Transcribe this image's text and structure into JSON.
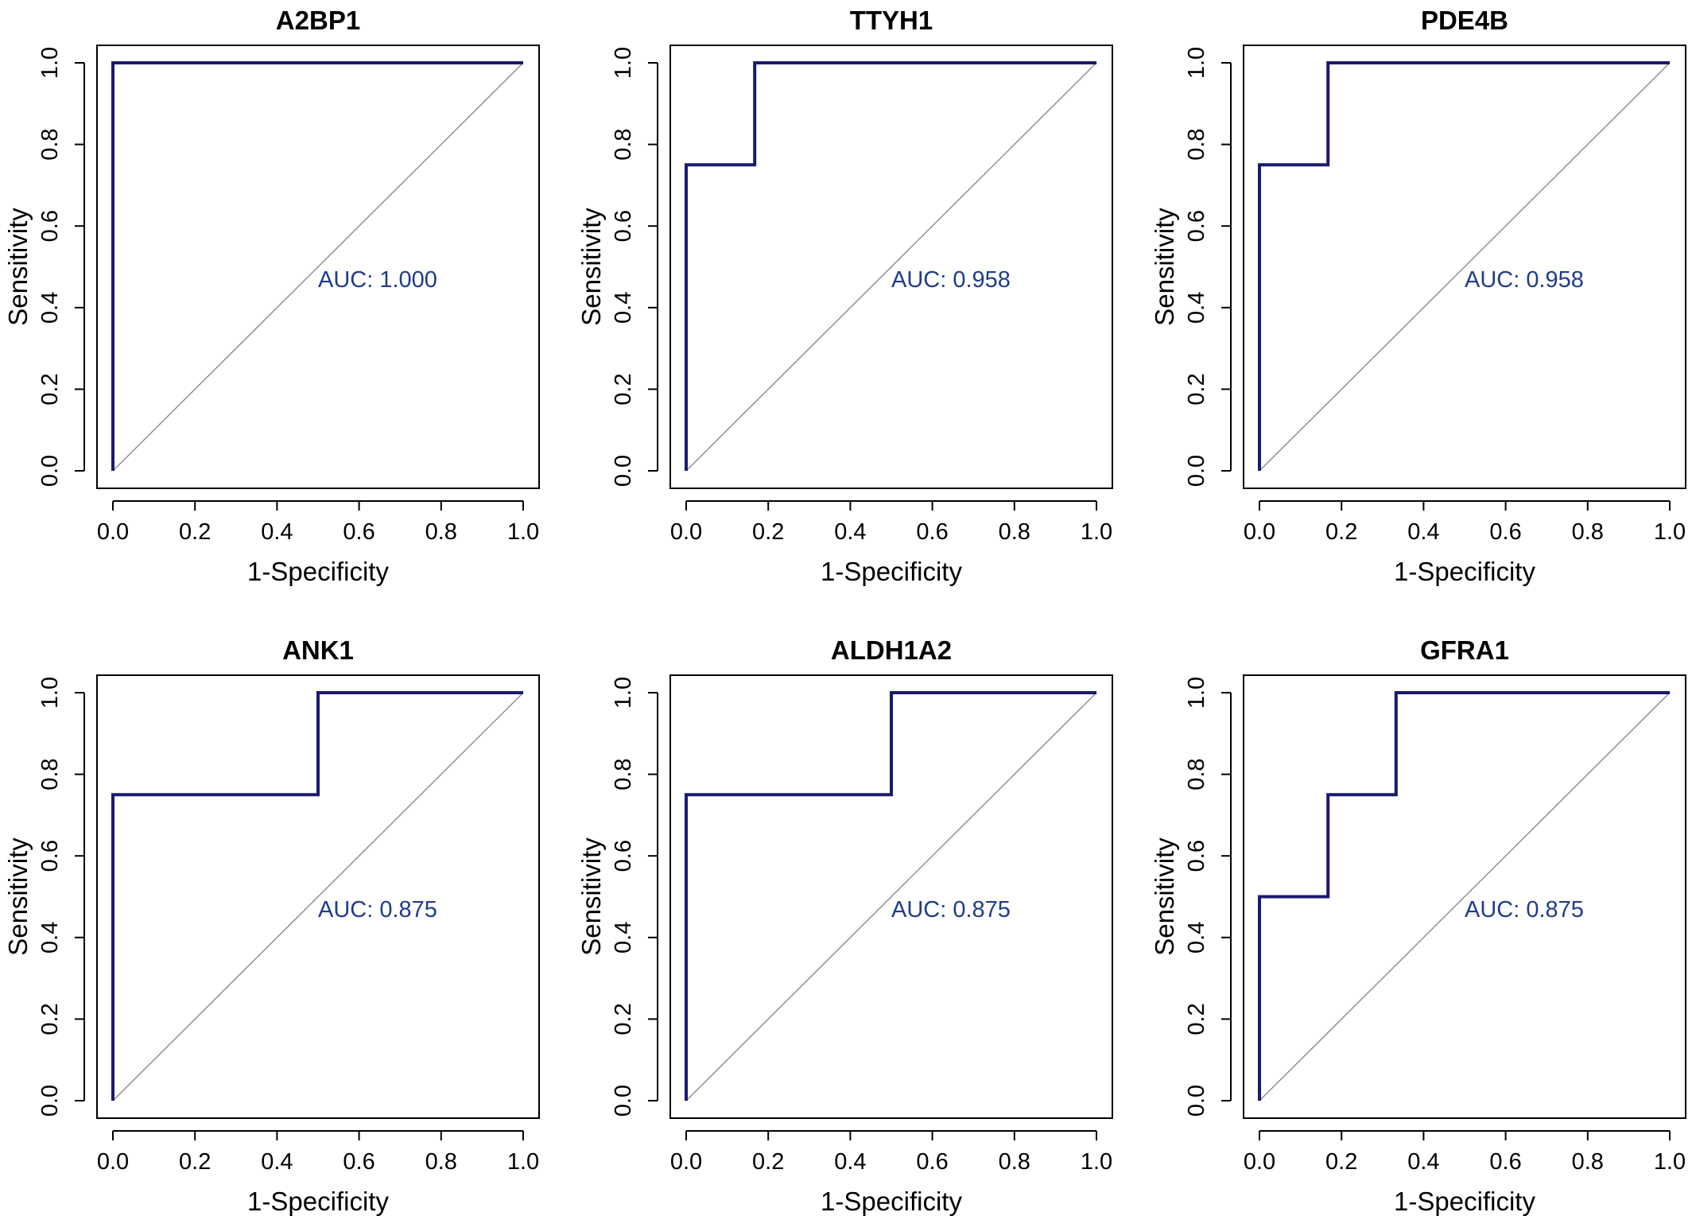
{
  "colors": {
    "roc_line": "#1a1a6e",
    "auc_text": "#1f3c8c",
    "diagonal": "#909090",
    "frame": "#000000"
  },
  "chart_data": [
    {
      "type": "line",
      "title": "A2BP1",
      "xlabel": "1-Specificity",
      "ylabel": "Sensitivity",
      "xlim": [
        0.0,
        1.0
      ],
      "ylim": [
        0.0,
        1.0
      ],
      "x_ticks": [
        "0.0",
        "0.2",
        "0.4",
        "0.6",
        "0.8",
        "1.0"
      ],
      "y_ticks": [
        "0.0",
        "0.2",
        "0.4",
        "0.6",
        "0.8",
        "1.0"
      ],
      "grid": false,
      "diagonal_reference": true,
      "auc_label": "AUC: 1.000",
      "auc": 1.0,
      "series": [
        {
          "x": [
            0,
            0,
            1
          ],
          "y": [
            0,
            1,
            1
          ]
        }
      ]
    },
    {
      "type": "line",
      "title": "TTYH1",
      "xlabel": "1-Specificity",
      "ylabel": "Sensitivity",
      "xlim": [
        0.0,
        1.0
      ],
      "ylim": [
        0.0,
        1.0
      ],
      "x_ticks": [
        "0.0",
        "0.2",
        "0.4",
        "0.6",
        "0.8",
        "1.0"
      ],
      "y_ticks": [
        "0.0",
        "0.2",
        "0.4",
        "0.6",
        "0.8",
        "1.0"
      ],
      "grid": false,
      "diagonal_reference": true,
      "auc_label": "AUC: 0.958",
      "auc": 0.958,
      "series": [
        {
          "x": [
            0,
            0,
            0.167,
            0.167,
            1
          ],
          "y": [
            0,
            0.75,
            0.75,
            1,
            1
          ]
        }
      ]
    },
    {
      "type": "line",
      "title": "PDE4B",
      "xlabel": "1-Specificity",
      "ylabel": "Sensitivity",
      "xlim": [
        0.0,
        1.0
      ],
      "ylim": [
        0.0,
        1.0
      ],
      "x_ticks": [
        "0.0",
        "0.2",
        "0.4",
        "0.6",
        "0.8",
        "1.0"
      ],
      "y_ticks": [
        "0.0",
        "0.2",
        "0.4",
        "0.6",
        "0.8",
        "1.0"
      ],
      "grid": false,
      "diagonal_reference": true,
      "auc_label": "AUC: 0.958",
      "auc": 0.958,
      "series": [
        {
          "x": [
            0,
            0,
            0.167,
            0.167,
            1
          ],
          "y": [
            0,
            0.75,
            0.75,
            1,
            1
          ]
        }
      ]
    },
    {
      "type": "line",
      "title": "ANK1",
      "xlabel": "1-Specificity",
      "ylabel": "Sensitivity",
      "xlim": [
        0.0,
        1.0
      ],
      "ylim": [
        0.0,
        1.0
      ],
      "x_ticks": [
        "0.0",
        "0.2",
        "0.4",
        "0.6",
        "0.8",
        "1.0"
      ],
      "y_ticks": [
        "0.0",
        "0.2",
        "0.4",
        "0.6",
        "0.8",
        "1.0"
      ],
      "grid": false,
      "diagonal_reference": true,
      "auc_label": "AUC: 0.875",
      "auc": 0.875,
      "series": [
        {
          "x": [
            0,
            0,
            0.5,
            0.5,
            1
          ],
          "y": [
            0,
            0.75,
            0.75,
            1,
            1
          ]
        }
      ]
    },
    {
      "type": "line",
      "title": "ALDH1A2",
      "xlabel": "1-Specificity",
      "ylabel": "Sensitivity",
      "xlim": [
        0.0,
        1.0
      ],
      "ylim": [
        0.0,
        1.0
      ],
      "x_ticks": [
        "0.0",
        "0.2",
        "0.4",
        "0.6",
        "0.8",
        "1.0"
      ],
      "y_ticks": [
        "0.0",
        "0.2",
        "0.4",
        "0.6",
        "0.8",
        "1.0"
      ],
      "grid": false,
      "diagonal_reference": true,
      "auc_label": "AUC: 0.875",
      "auc": 0.875,
      "series": [
        {
          "x": [
            0,
            0,
            0.5,
            0.5,
            1
          ],
          "y": [
            0,
            0.75,
            0.75,
            1,
            1
          ]
        }
      ]
    },
    {
      "type": "line",
      "title": "GFRA1",
      "xlabel": "1-Specificity",
      "ylabel": "Sensitivity",
      "xlim": [
        0.0,
        1.0
      ],
      "ylim": [
        0.0,
        1.0
      ],
      "x_ticks": [
        "0.0",
        "0.2",
        "0.4",
        "0.6",
        "0.8",
        "1.0"
      ],
      "y_ticks": [
        "0.0",
        "0.2",
        "0.4",
        "0.6",
        "0.8",
        "1.0"
      ],
      "grid": false,
      "diagonal_reference": true,
      "auc_label": "AUC: 0.875",
      "auc": 0.875,
      "series": [
        {
          "x": [
            0,
            0,
            0.167,
            0.167,
            0.333,
            0.333,
            1
          ],
          "y": [
            0,
            0.5,
            0.5,
            0.75,
            0.75,
            1,
            1
          ]
        }
      ]
    }
  ]
}
